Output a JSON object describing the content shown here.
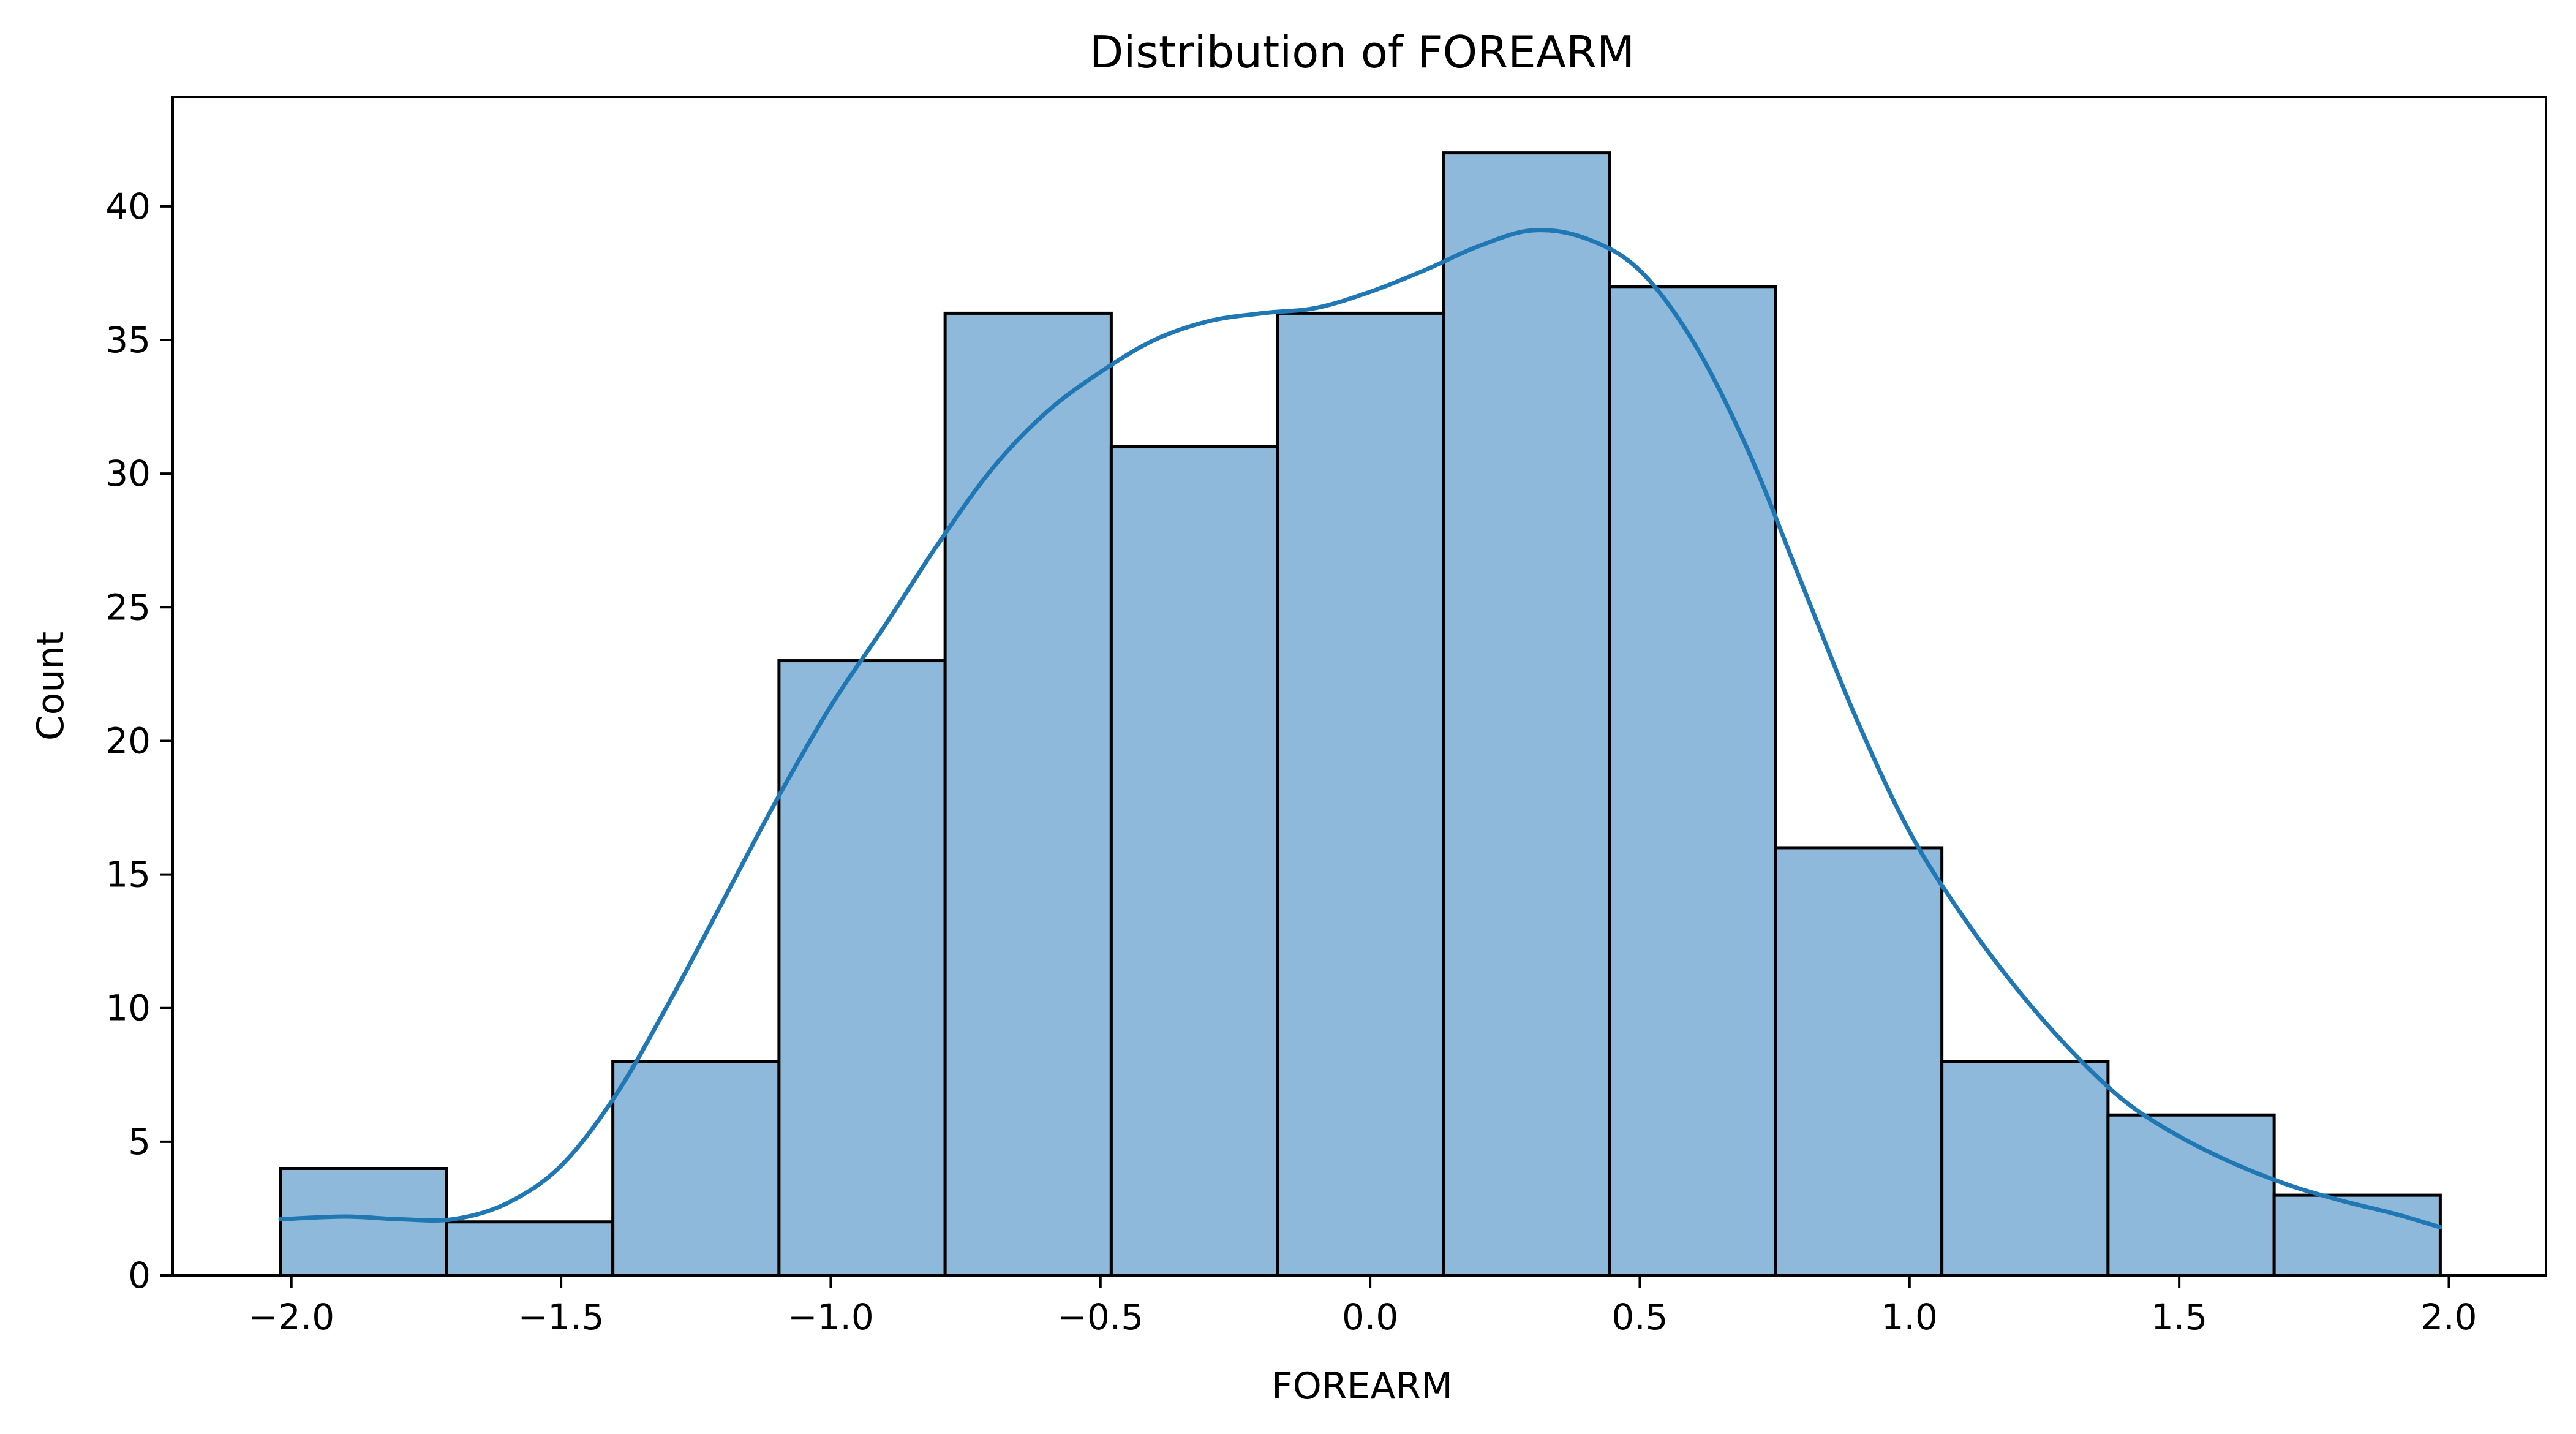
{
  "chart_data": {
    "type": "bar",
    "title": "Distribution of FOREARM",
    "xlabel": "FOREARM",
    "ylabel": "Count",
    "xlim": [
      -2.22,
      2.18
    ],
    "ylim": [
      0,
      44.1
    ],
    "xticks": [
      -2.0,
      -1.5,
      -1.0,
      -0.5,
      0.0,
      0.5,
      1.0,
      1.5,
      2.0
    ],
    "xtick_labels": [
      "−2.0",
      "−1.5",
      "−1.0",
      "−0.5",
      "0.0",
      "0.5",
      "1.0",
      "1.5",
      "2.0"
    ],
    "yticks": [
      0,
      5,
      10,
      15,
      20,
      25,
      30,
      35,
      40
    ],
    "ytick_labels": [
      "0",
      "5",
      "10",
      "15",
      "20",
      "25",
      "30",
      "35",
      "40"
    ],
    "bin_edges": [
      -2.02,
      -1.712,
      -1.404,
      -1.096,
      -0.788,
      -0.48,
      -0.172,
      0.136,
      0.444,
      0.752,
      1.06,
      1.368,
      1.676,
      1.984
    ],
    "counts": [
      4,
      2,
      8,
      23,
      36,
      31,
      36,
      42,
      37,
      16,
      8,
      6,
      3
    ],
    "kde": {
      "x": [
        -2.02,
        -1.9,
        -1.8,
        -1.7,
        -1.6,
        -1.5,
        -1.4,
        -1.3,
        -1.2,
        -1.1,
        -1.0,
        -0.9,
        -0.8,
        -0.7,
        -0.6,
        -0.5,
        -0.4,
        -0.3,
        -0.2,
        -0.1,
        0.0,
        0.1,
        0.2,
        0.3,
        0.4,
        0.5,
        0.6,
        0.7,
        0.8,
        0.9,
        1.0,
        1.1,
        1.2,
        1.3,
        1.4,
        1.5,
        1.6,
        1.7,
        1.8,
        1.9,
        1.984
      ],
      "y": [
        2.1,
        2.2,
        2.1,
        2.1,
        2.7,
        4.1,
        6.7,
        10.2,
        14.0,
        17.8,
        21.3,
        24.3,
        27.4,
        30.2,
        32.3,
        33.8,
        35.0,
        35.7,
        36.0,
        36.2,
        36.8,
        37.6,
        38.5,
        39.1,
        38.8,
        37.6,
        34.9,
        30.9,
        25.9,
        20.9,
        16.6,
        13.4,
        10.7,
        8.4,
        6.5,
        5.2,
        4.2,
        3.4,
        2.8,
        2.3,
        1.8
      ]
    },
    "grid": false,
    "legend": "none",
    "colors": {
      "bar_fill": "#8fb9da",
      "bar_edge": "#000000",
      "kde_line": "#1f77b4"
    }
  }
}
